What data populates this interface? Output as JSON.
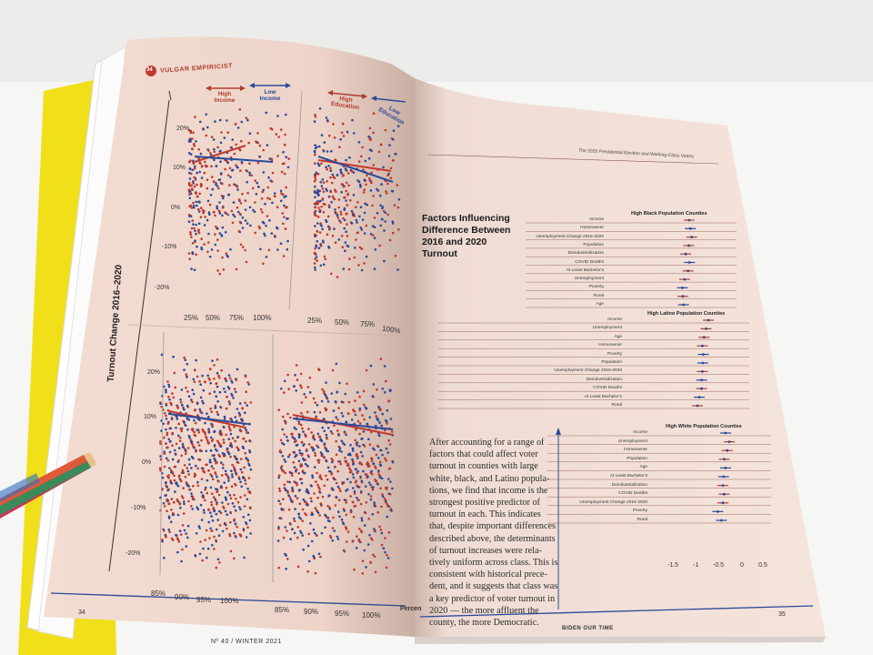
{
  "magazine": {
    "section": "VULGAR EMPIRICIST",
    "page_badge": "34",
    "running_head": "The 2020 Presidential Election and Working-Class Voters",
    "page_left": "34",
    "page_right": "35",
    "footer_issue": "Nº 40  /  WINTER 2021",
    "footer_title": "BIDEN OUR TIME"
  },
  "left_page": {
    "y_axis_title": "Turnout Change 2016–2020",
    "top_panels": [
      {
        "arrow_left": "High Income",
        "arrow_right": "Low Income",
        "y_ticks": [
          "20%",
          "10%",
          "0%",
          "-10%",
          "-20%"
        ],
        "x_ticks": [
          "25%",
          "50%",
          "75%",
          "100%"
        ]
      },
      {
        "arrow_left": "High Education",
        "arrow_right": "Low Education",
        "x_ticks": [
          "25%",
          "50%",
          "75%",
          "100%"
        ]
      }
    ],
    "bottom_panels": [
      {
        "y_ticks": [
          "20%",
          "10%",
          "0%",
          "-10%",
          "-20%"
        ],
        "x_ticks": [
          "85%",
          "90%",
          "95%",
          "100%"
        ]
      },
      {
        "x_ticks": [
          "85%",
          "90%",
          "95%",
          "100%"
        ],
        "x_label_partial": "Percen"
      }
    ]
  },
  "right_page": {
    "figure_title": "Factors Influencing Difference Between 2016 and 2020 Turnout",
    "groups": [
      {
        "title": "High Black Population Counties",
        "rows": [
          "Income",
          "Homeowner",
          "Unemployment Change 2016-2020",
          "Population",
          "Deindustrialization",
          "COVID Deaths",
          "At Least Bachelor's",
          "Unemployment",
          "Poverty",
          "Rural",
          "Age"
        ]
      },
      {
        "title": "High Latino Population Counties",
        "rows": [
          "Income",
          "Unemployment",
          "Age",
          "Homeowner",
          "Poverty",
          "Population",
          "Unemployment Change 2016-2020",
          "Deindustrialization",
          "COVID Deaths",
          "At Least Bachelor's",
          "Rural"
        ]
      },
      {
        "title": "High White Population Counties",
        "rows": [
          "Income",
          "Unemployment",
          "Homeowner",
          "Population",
          "Age",
          "At Least Bachelor's",
          "Deindustrialization",
          "COVID Deaths",
          "Unemployment Change 2016-2020",
          "Poverty",
          "Rural"
        ]
      }
    ],
    "x_ticks": [
      "-1.5",
      "-1",
      "-0.5",
      "0",
      "0.5"
    ],
    "body_lines": [
      "After accounting for a range of",
      "factors that could affect voter",
      "turnout in counties with large",
      "white, black, and Latino popula-",
      "tions, we find that income is the",
      "strongest positive predictor of",
      "turnout in each. This indicates",
      "that, despite important differences",
      "described above, the determinants",
      "of turnout increases were rela-",
      "tively uniform across class. This is",
      "consistent with historical prece-",
      "dent, and it suggests that class was",
      "a key predictor of voter turnout in",
      "2020 — the more affluent the",
      "county, the more Democratic."
    ]
  },
  "colors": {
    "red": "#c0392b",
    "blue": "#2a4a9a",
    "page": "#f2dcd2",
    "yellow": "#f2e218"
  }
}
